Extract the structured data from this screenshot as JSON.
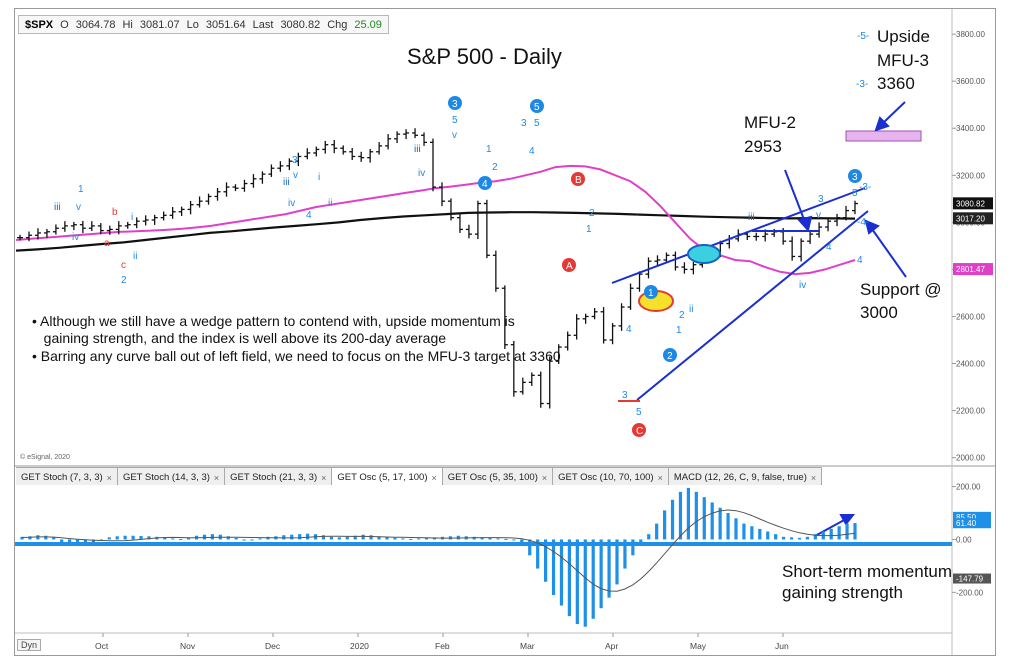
{
  "quote": {
    "symbol": "$SPX",
    "open_label": "O",
    "open": "3064.78",
    "high_label": "Hi",
    "high": "3081.07",
    "low_label": "Lo",
    "low": "3051.64",
    "last_label": "Last",
    "last": "3080.82",
    "chg_label": "Chg",
    "chg": "25.09"
  },
  "chart_title": "S&P 500 - Daily",
  "annotations": {
    "upside": "Upside",
    "mfu3": "MFU-3",
    "mfu3_value": "3360",
    "mfu2": "MFU-2",
    "mfu2_value": "2953",
    "support": "Support @",
    "support_value": "3000",
    "momentum_line1": "Short-term momentum",
    "momentum_line2": "gaining strength",
    "copyright": "© eSignal, 2020"
  },
  "bullets": [
    "• Although we still have a wedge pattern to contend with, upside momentum is",
    "   gaining strength, and the index is well above its 200-day average",
    "• Barring any curve ball out of left field, we need to focus on the MFU-3 target at 3360"
  ],
  "tabs": [
    {
      "label": "GET Stoch (7, 3, 3)"
    },
    {
      "label": "GET Stoch (14, 3, 3)"
    },
    {
      "label": "GET Stoch (21, 3, 3)"
    },
    {
      "label": "GET Osc (5, 17, 100)",
      "active": true
    },
    {
      "label": "GET Osc (5, 35, 100)"
    },
    {
      "label": "GET Osc (10, 70, 100)"
    },
    {
      "label": "MACD (12, 26, C, 9, false, true)"
    }
  ],
  "dyn_label": "Dyn",
  "colors": {
    "ma_short": "#e040c8",
    "ma_long": "#111111",
    "wedge": "#1a2fd0",
    "osc": "#1e90e8",
    "zero": "#1e90e8",
    "target_box": "#e8b4f0",
    "ellipse_yellow": "#f5e02a",
    "ellipse_cyan": "#3ad0e0",
    "label_blue": "#1e88e5",
    "label_red": "#e53935"
  },
  "chart_data": {
    "type": "line",
    "price_axis": {
      "ticks": [
        "3800.00",
        "3600.00",
        "3400.00",
        "3200.00",
        "3000.00",
        "2800.00",
        "2600.00",
        "2400.00",
        "2200.00",
        "2000.00"
      ],
      "range": [
        1990,
        3860
      ]
    },
    "price_tags": [
      {
        "label": "3080.82",
        "value": 3080.82
      },
      {
        "label": "3017.20",
        "value": 3017.2
      },
      {
        "label": "2801.47",
        "value": 2801.47
      }
    ],
    "osc_axis": {
      "ticks": [
        "200.00",
        "0.00",
        "-200.00"
      ],
      "range": [
        -350,
        240
      ]
    },
    "osc_tags": [
      {
        "label": "85.50",
        "value": 85.5
      },
      {
        "label": "61.40",
        "value": 61.4
      },
      {
        "label": "-147.79",
        "value": -147.79
      }
    ],
    "months": [
      "Oct",
      "Nov",
      "Dec",
      "2020",
      "Feb",
      "Mar",
      "Apr",
      "May",
      "Jun"
    ],
    "month_positions": [
      0.1,
      0.2,
      0.3,
      0.4,
      0.5,
      0.6,
      0.7,
      0.8,
      0.9
    ],
    "series": [
      {
        "key": "price",
        "values": [
          2935,
          2945,
          2955,
          2960,
          2975,
          2985,
          2990,
          2975,
          2985,
          2965,
          2970,
          2985,
          2990,
          3005,
          3010,
          3020,
          3030,
          3045,
          3055,
          3075,
          3090,
          3110,
          3130,
          3150,
          3145,
          3165,
          3185,
          3205,
          3230,
          3240,
          3260,
          3280,
          3295,
          3310,
          3330,
          3315,
          3300,
          3280,
          3275,
          3300,
          3325,
          3355,
          3375,
          3380,
          3370,
          3340,
          3150,
          3090,
          3020,
          2970,
          2950,
          3080,
          2860,
          2720,
          2480,
          2280,
          2320,
          2350,
          2230,
          2410,
          2470,
          2520,
          2590,
          2600,
          2620,
          2500,
          2560,
          2640,
          2720,
          2780,
          2835,
          2840,
          2860,
          2810,
          2800,
          2820,
          2850,
          2870,
          2910,
          2930,
          2950,
          2940,
          2940,
          2950,
          2960,
          2920,
          2855,
          2920,
          2950,
          2980,
          3005,
          3020,
          3050,
          3080
        ]
      },
      {
        "key": "ma_short",
        "values": [
          2925,
          2930,
          2935,
          2940,
          2945,
          2950,
          2955,
          2960,
          2962,
          2965,
          2968,
          2972,
          2978,
          2985,
          2995,
          3005,
          3015,
          3025,
          3035,
          3050,
          3065,
          3075,
          3085,
          3095,
          3105,
          3115,
          3125,
          3135,
          3145,
          3152,
          3160,
          3168,
          3175,
          3185,
          3200,
          3215,
          3235,
          3240,
          3238,
          3225,
          3200,
          3175,
          3130,
          3070,
          3000,
          2930,
          2880,
          2860,
          2840,
          2835,
          2810,
          2790,
          2780,
          2785,
          2800,
          2820,
          2840
        ]
      },
      {
        "key": "ma_long",
        "values": [
          2880,
          2885,
          2892,
          2900,
          2908,
          2915,
          2925,
          2935,
          2945,
          2955,
          2962,
          2970,
          2978,
          2985,
          2992,
          3000,
          3010,
          3018,
          3025,
          3030,
          3035,
          3040,
          3042,
          3043,
          3043,
          3042,
          3040,
          3038,
          3036,
          3033,
          3030,
          3027,
          3024,
          3022,
          3020,
          3018,
          3017,
          3018,
          3017,
          3016
        ]
      },
      {
        "key": "osc",
        "values": [
          10,
          12,
          16,
          14,
          8,
          -10,
          -20,
          -25,
          -18,
          -12,
          -2,
          8,
          12,
          14,
          14,
          13,
          12,
          10,
          6,
          4,
          2,
          6,
          14,
          18,
          20,
          18,
          12,
          6,
          -4,
          -2,
          4,
          10,
          12,
          16,
          18,
          20,
          22,
          20,
          16,
          10,
          8,
          10,
          14,
          18,
          16,
          12,
          8,
          6,
          4,
          2,
          4,
          6,
          8,
          10,
          12,
          14,
          12,
          10,
          8,
          6,
          4,
          2,
          0,
          -20,
          -60,
          -110,
          -160,
          -210,
          -250,
          -290,
          -320,
          -330,
          -300,
          -260,
          -220,
          -170,
          -110,
          -60,
          -20,
          20,
          60,
          110,
          150,
          180,
          195,
          180,
          160,
          140,
          120,
          100,
          80,
          60,
          50,
          40,
          30,
          20,
          10,
          8,
          6,
          10,
          20,
          30,
          40,
          50,
          60,
          62
        ]
      }
    ]
  }
}
